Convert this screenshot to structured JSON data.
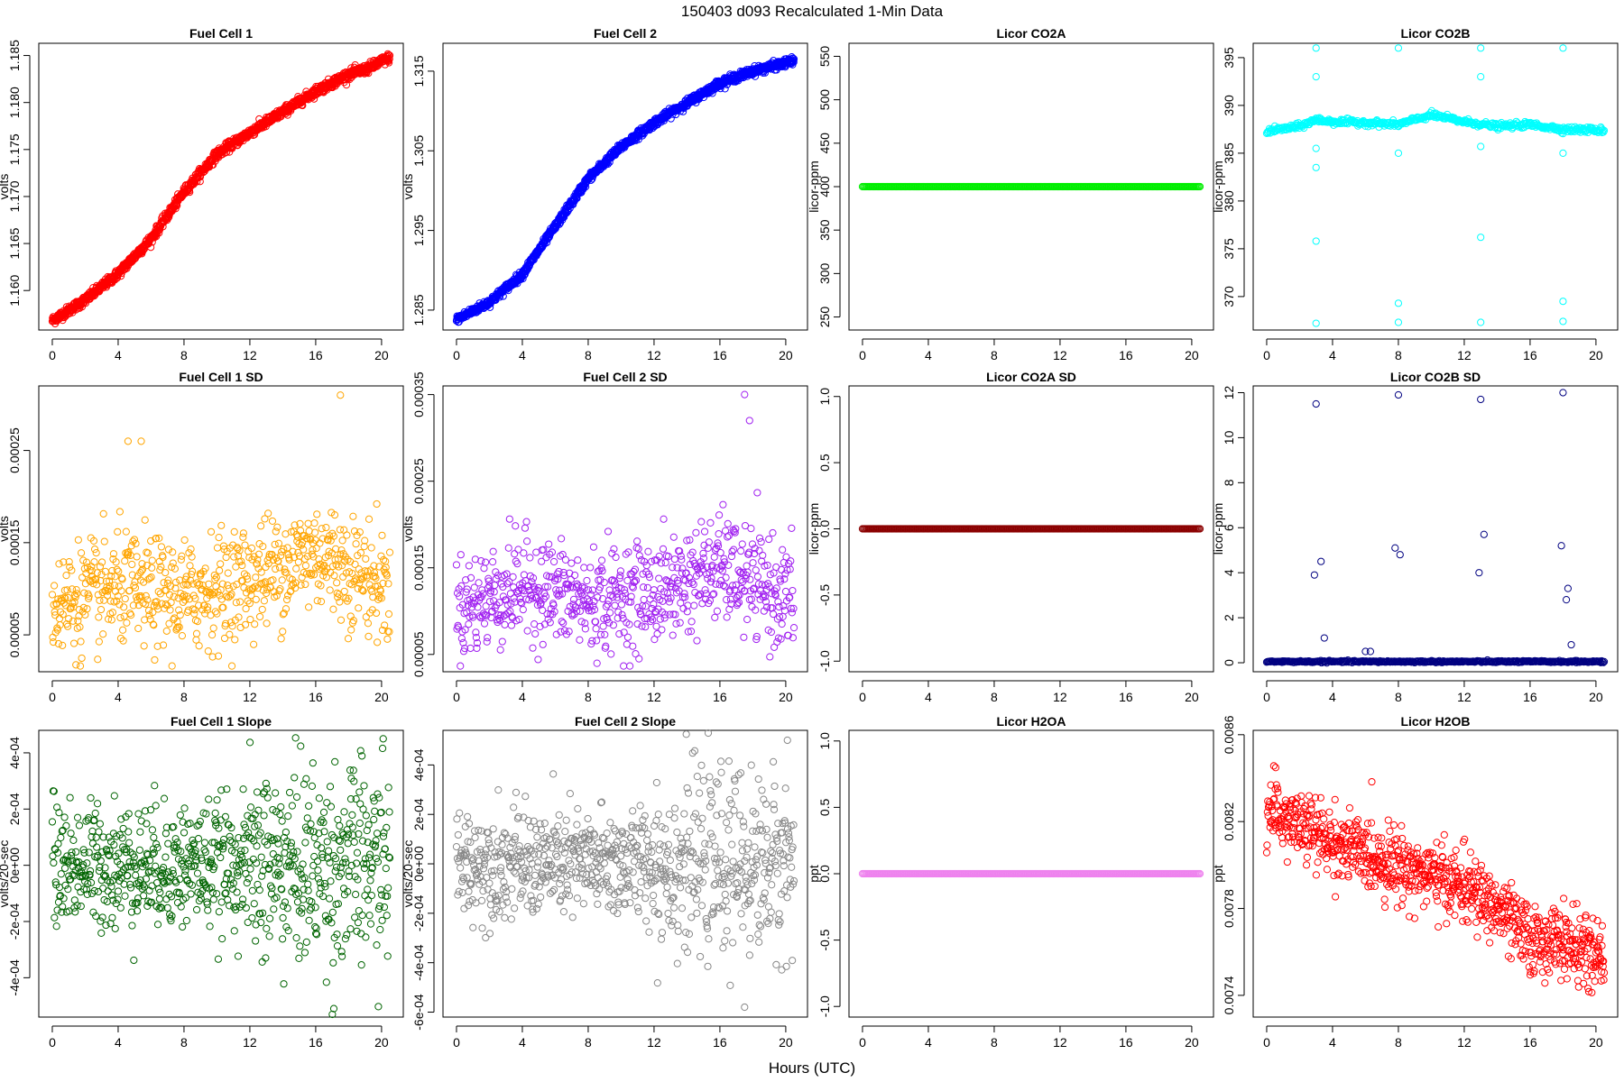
{
  "title": "150403   d093   Recalculated 1-Min Data",
  "xlabel": "Hours (UTC)",
  "chart_data": [
    {
      "id": "fc1",
      "type": "scatter",
      "title": "Fuel Cell 1",
      "ylabel": "volts",
      "color": "#ff0000",
      "marker": "open-circle",
      "xlim": [
        0,
        20.5
      ],
      "ylim": [
        1.1558,
        1.1863
      ],
      "xticks": [
        0,
        4,
        8,
        12,
        16,
        20
      ],
      "yticks": [
        1.16,
        1.165,
        1.17,
        1.175,
        1.18,
        1.185
      ],
      "ytick_labels": [
        "1.160",
        "1.165",
        "1.170",
        "1.175",
        "1.180",
        "1.185"
      ],
      "x": [
        0,
        2,
        4,
        6,
        8,
        10,
        12,
        14,
        16,
        18,
        19,
        20.5
      ],
      "y": [
        1.1568,
        1.159,
        1.1618,
        1.1655,
        1.1705,
        1.1745,
        1.1768,
        1.179,
        1.1812,
        1.183,
        1.1835,
        1.1848
      ]
    },
    {
      "id": "fc2",
      "type": "scatter",
      "title": "Fuel Cell 2",
      "ylabel": "volts",
      "color": "#0000ff",
      "marker": "open-circle",
      "xlim": [
        0,
        20.5
      ],
      "ylim": [
        1.2825,
        1.3185
      ],
      "xticks": [
        0,
        4,
        8,
        12,
        16,
        20
      ],
      "yticks": [
        1.285,
        1.295,
        1.305,
        1.315
      ],
      "ytick_labels": [
        "1.285",
        "1.295",
        "1.305",
        "1.315"
      ],
      "x": [
        0,
        2,
        4,
        6,
        8,
        10,
        12,
        14,
        16,
        18,
        20.5
      ],
      "y": [
        1.2838,
        1.286,
        1.2895,
        1.2955,
        1.3015,
        1.3055,
        1.3085,
        1.311,
        1.3135,
        1.315,
        1.3163
      ]
    },
    {
      "id": "co2a",
      "type": "scatter",
      "title": "Licor CO2A",
      "ylabel": "licor-ppm",
      "color": "#00ee00",
      "marker": "open-circle",
      "xlim": [
        0,
        20.5
      ],
      "ylim": [
        235,
        565
      ],
      "xticks": [
        0,
        4,
        8,
        12,
        16,
        20
      ],
      "yticks": [
        250,
        300,
        350,
        400,
        450,
        500,
        550
      ],
      "ytick_labels": [
        "250",
        "300",
        "350",
        "400",
        "450",
        "500",
        "550"
      ],
      "x": [
        0,
        20.5
      ],
      "y": [
        400,
        400
      ]
    },
    {
      "id": "co2b",
      "type": "scatter",
      "title": "Licor CO2B",
      "ylabel": "licor-ppm",
      "color": "#00ffff",
      "marker": "open-circle",
      "xlim": [
        0,
        20.5
      ],
      "ylim": [
        366.5,
        396.5
      ],
      "xticks": [
        0,
        4,
        8,
        12,
        16,
        20
      ],
      "yticks": [
        370,
        375,
        380,
        385,
        390,
        395
      ],
      "ytick_labels": [
        "370",
        "375",
        "380",
        "385",
        "390",
        "395"
      ],
      "x": [
        0,
        2,
        3,
        4,
        6,
        8,
        10,
        12,
        14,
        16,
        18,
        20.5
      ],
      "y": [
        387.3,
        387.8,
        388.5,
        388.3,
        388.2,
        388.0,
        389.0,
        388.3,
        387.8,
        388.0,
        387.5,
        387.4
      ],
      "outliers": [
        [
          3,
          396
        ],
        [
          3,
          393
        ],
        [
          3,
          385.5
        ],
        [
          3,
          383.5
        ],
        [
          3,
          375.8
        ],
        [
          3,
          367.2
        ],
        [
          8,
          396
        ],
        [
          8,
          385
        ],
        [
          8,
          369.3
        ],
        [
          8,
          367.3
        ],
        [
          13,
          396
        ],
        [
          13,
          393
        ],
        [
          13,
          385.7
        ],
        [
          13,
          376.2
        ],
        [
          13,
          367.3
        ],
        [
          18,
          396
        ],
        [
          18,
          385
        ],
        [
          18,
          369.5
        ],
        [
          18,
          367.4
        ]
      ]
    },
    {
      "id": "fc1sd",
      "type": "scatter",
      "title": "Fuel Cell 1 SD",
      "ylabel": "volts",
      "color": "#ffa500",
      "marker": "open-circle",
      "xlim": [
        0,
        20.5
      ],
      "ylim": [
        1e-05,
        0.00032
      ],
      "xticks": [
        0,
        4,
        8,
        12,
        16,
        20
      ],
      "yticks": [
        5e-05,
        0.00015,
        0.00025
      ],
      "ytick_labels": [
        "0.00005",
        "0.00015",
        "0.00025"
      ],
      "x": [
        0,
        4,
        8,
        12,
        16,
        20.5
      ],
      "y": [
        8e-05,
        0.0001,
        9e-05,
        0.00011,
        0.00014,
        0.0001
      ],
      "outliers": [
        [
          4.6,
          0.00026
        ],
        [
          5.4,
          0.00026
        ],
        [
          17.5,
          0.00031
        ]
      ]
    },
    {
      "id": "fc2sd",
      "type": "scatter",
      "title": "Fuel Cell 2 SD",
      "ylabel": "volts",
      "color": "#a020f0",
      "marker": "open-circle",
      "xlim": [
        0,
        20.5
      ],
      "ylim": [
        3e-05,
        0.00036
      ],
      "xticks": [
        0,
        4,
        8,
        12,
        16,
        20
      ],
      "yticks": [
        5e-05,
        0.00015,
        0.00025,
        0.00035
      ],
      "ytick_labels": [
        "0.00005",
        "0.00015",
        "0.00025",
        "0.00035"
      ],
      "x": [
        0,
        4,
        8,
        12,
        16,
        20.5
      ],
      "y": [
        0.0001,
        0.00013,
        0.00011,
        0.00012,
        0.00015,
        0.00011
      ],
      "outliers": [
        [
          17.5,
          0.00035
        ],
        [
          17.8,
          0.00032
        ]
      ]
    },
    {
      "id": "co2asd",
      "type": "scatter",
      "title": "Licor CO2A SD",
      "ylabel": "licor-ppm",
      "color": "#8b0000",
      "marker": "open-circle",
      "xlim": [
        0,
        20.5
      ],
      "ylim": [
        -1.08,
        1.08
      ],
      "xticks": [
        0,
        4,
        8,
        12,
        16,
        20
      ],
      "yticks": [
        -1.0,
        -0.5,
        0.0,
        0.5,
        1.0
      ],
      "ytick_labels": [
        "-1.0",
        "-0.5",
        "0.0",
        "0.5",
        "1.0"
      ],
      "x": [
        0,
        20.5
      ],
      "y": [
        0,
        0
      ]
    },
    {
      "id": "co2bsd",
      "type": "scatter",
      "title": "Licor CO2B SD",
      "ylabel": "licor-ppm",
      "color": "#000080",
      "marker": "open-circle",
      "xlim": [
        0,
        20.5
      ],
      "ylim": [
        -0.4,
        12.3
      ],
      "xticks": [
        0,
        4,
        8,
        12,
        16,
        20
      ],
      "yticks": [
        0,
        2,
        4,
        6,
        8,
        10,
        12
      ],
      "ytick_labels": [
        "0",
        "2",
        "4",
        "6",
        "8",
        "10",
        "12"
      ],
      "x": [
        0,
        20.5
      ],
      "y": [
        0.05,
        0.05
      ],
      "outliers": [
        [
          3,
          11.5
        ],
        [
          2.9,
          3.9
        ],
        [
          3.3,
          4.5
        ],
        [
          3.5,
          1.1
        ],
        [
          8,
          11.9
        ],
        [
          7.8,
          5.1
        ],
        [
          8.1,
          4.8
        ],
        [
          13,
          11.7
        ],
        [
          12.9,
          4.0
        ],
        [
          13.2,
          5.7
        ],
        [
          18,
          12.0
        ],
        [
          17.9,
          5.2
        ],
        [
          18.3,
          3.3
        ],
        [
          18.2,
          2.8
        ],
        [
          18.5,
          0.8
        ],
        [
          6,
          0.5
        ],
        [
          6.3,
          0.5
        ]
      ]
    },
    {
      "id": "fc1slope",
      "type": "scatter",
      "title": "Fuel Cell 1 Slope",
      "ylabel": "volts/20-sec",
      "color": "#006400",
      "marker": "open-circle",
      "xlim": [
        0,
        20.5
      ],
      "ylim": [
        -0.00054,
        0.00048
      ],
      "xticks": [
        0,
        4,
        8,
        12,
        16,
        20
      ],
      "yticks": [
        -0.0004,
        -0.0002,
        0,
        0.0002,
        0.0004
      ],
      "ytick_labels": [
        "-4e-04",
        "-2e-04",
        "0e+00",
        "2e-04",
        "4e-04"
      ],
      "x": [
        0,
        20.5
      ],
      "y": [
        0,
        0
      ],
      "outliers": [
        [
          17.1,
          -0.00051
        ],
        [
          20.1,
          0.00045
        ]
      ]
    },
    {
      "id": "fc2slope",
      "type": "scatter",
      "title": "Fuel Cell 2 Slope",
      "ylabel": "volts/20-sec",
      "color": "#888888",
      "marker": "open-circle",
      "xlim": [
        0,
        20.5
      ],
      "ylim": [
        -0.00062,
        0.00054
      ],
      "xticks": [
        0,
        4,
        8,
        12,
        16,
        20
      ],
      "yticks": [
        -0.0006,
        -0.0004,
        -0.0002,
        0,
        0.0002,
        0.0004
      ],
      "ytick_labels": [
        "-6e-04",
        "-4e-04",
        "-2e-04",
        "0e+00",
        "2e-04",
        "4e-04"
      ],
      "x": [
        0,
        20.5
      ],
      "y": [
        0,
        0
      ],
      "outliers": [
        [
          17.5,
          -0.00058
        ],
        [
          20.1,
          0.0005
        ]
      ]
    },
    {
      "id": "h2oa",
      "type": "scatter",
      "title": "Licor H2OA",
      "ylabel": "ppt",
      "color": "#ee82ee",
      "marker": "open-circle",
      "xlim": [
        0,
        20.5
      ],
      "ylim": [
        -1.08,
        1.08
      ],
      "xticks": [
        0,
        4,
        8,
        12,
        16,
        20
      ],
      "yticks": [
        -1.0,
        -0.5,
        0.0,
        0.5,
        1.0
      ],
      "ytick_labels": [
        "-1.0",
        "-0.5",
        "0.0",
        "0.5",
        "1.0"
      ],
      "x": [
        0,
        20.5
      ],
      "y": [
        0,
        0
      ]
    },
    {
      "id": "h2ob",
      "type": "scatter",
      "title": "Licor H2OB",
      "ylabel": "ppt",
      "color": "#ff0000",
      "marker": "open-circle",
      "xlim": [
        0,
        20.5
      ],
      "ylim": [
        0.0073,
        0.00862
      ],
      "xticks": [
        0,
        4,
        8,
        12,
        16,
        20
      ],
      "yticks": [
        0.0074,
        0.0078,
        0.0082,
        0.0086
      ],
      "ytick_labels": [
        "0.0074",
        "0.0078",
        "0.0082",
        "0.0086"
      ],
      "x": [
        0,
        2,
        4,
        6,
        8,
        10,
        12,
        14,
        16,
        18,
        20.5
      ],
      "y": [
        0.00825,
        0.00818,
        0.0081,
        0.00805,
        0.008,
        0.00795,
        0.0079,
        0.0078,
        0.00765,
        0.00765,
        0.00755
      ]
    }
  ]
}
